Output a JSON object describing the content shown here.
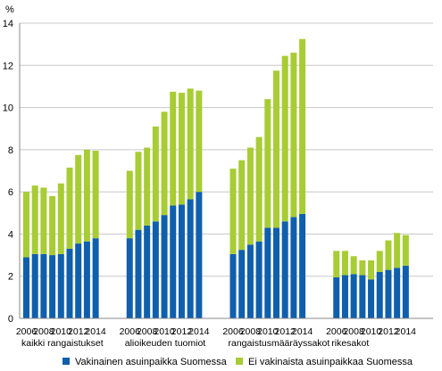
{
  "chart_data": {
    "type": "bar",
    "stacked": true,
    "y_unit": "%",
    "ylim": [
      0,
      14
    ],
    "y_ticks": [
      0,
      2,
      4,
      6,
      8,
      10,
      12,
      14
    ],
    "grid": "horizontal",
    "legend_placement": "bottom",
    "x_tick_labels": [
      "2006",
      "2008",
      "2010",
      "2012",
      "2014"
    ],
    "colors": {
      "permanent": "#0f5fad",
      "non_permanent": "#a8cc34",
      "grid": "#c8c8c8",
      "axis": "#888888"
    },
    "groups": [
      {
        "label": "kaikki rangaistukset",
        "years": [
          2006,
          2007,
          2008,
          2009,
          2010,
          2011,
          2012,
          2013,
          2014
        ],
        "permanent": [
          2.9,
          3.05,
          3.05,
          3.0,
          3.05,
          3.3,
          3.55,
          3.65,
          3.8
        ],
        "non_permanent": [
          3.1,
          3.25,
          3.15,
          2.8,
          3.35,
          3.85,
          4.2,
          4.35,
          4.15
        ]
      },
      {
        "label": "alioikeuden tuomiot",
        "years": [
          2006,
          2007,
          2008,
          2009,
          2010,
          2011,
          2012,
          2013,
          2014
        ],
        "permanent": [
          3.8,
          4.2,
          4.4,
          4.6,
          4.9,
          5.35,
          5.4,
          5.65,
          6.0
        ],
        "non_permanent": [
          3.2,
          3.7,
          3.7,
          4.5,
          4.9,
          5.4,
          5.3,
          5.25,
          4.8
        ]
      },
      {
        "label": "rangaistusmääräyssakot",
        "years": [
          2006,
          2007,
          2008,
          2009,
          2010,
          2011,
          2012,
          2013,
          2014
        ],
        "permanent": [
          3.05,
          3.25,
          3.5,
          3.65,
          4.3,
          4.3,
          4.6,
          4.8,
          4.95
        ],
        "non_permanent": [
          4.05,
          4.25,
          4.6,
          4.95,
          6.1,
          7.45,
          7.85,
          7.8,
          8.3
        ]
      },
      {
        "label": "rikesakot",
        "years": [
          2006,
          2007,
          2008,
          2009,
          2010,
          2011,
          2012,
          2013,
          2014
        ],
        "permanent": [
          1.95,
          2.05,
          2.1,
          2.05,
          1.85,
          2.2,
          2.3,
          2.4,
          2.5
        ],
        "non_permanent": [
          1.25,
          1.15,
          0.85,
          0.7,
          0.9,
          1.0,
          1.4,
          1.65,
          1.45
        ]
      }
    ],
    "series": [
      {
        "key": "permanent",
        "name": "Vakinainen asuinpaikka Suomessa"
      },
      {
        "key": "non_permanent",
        "name": "Ei vakinaista asuinpaikkaa Suomessa"
      }
    ]
  }
}
